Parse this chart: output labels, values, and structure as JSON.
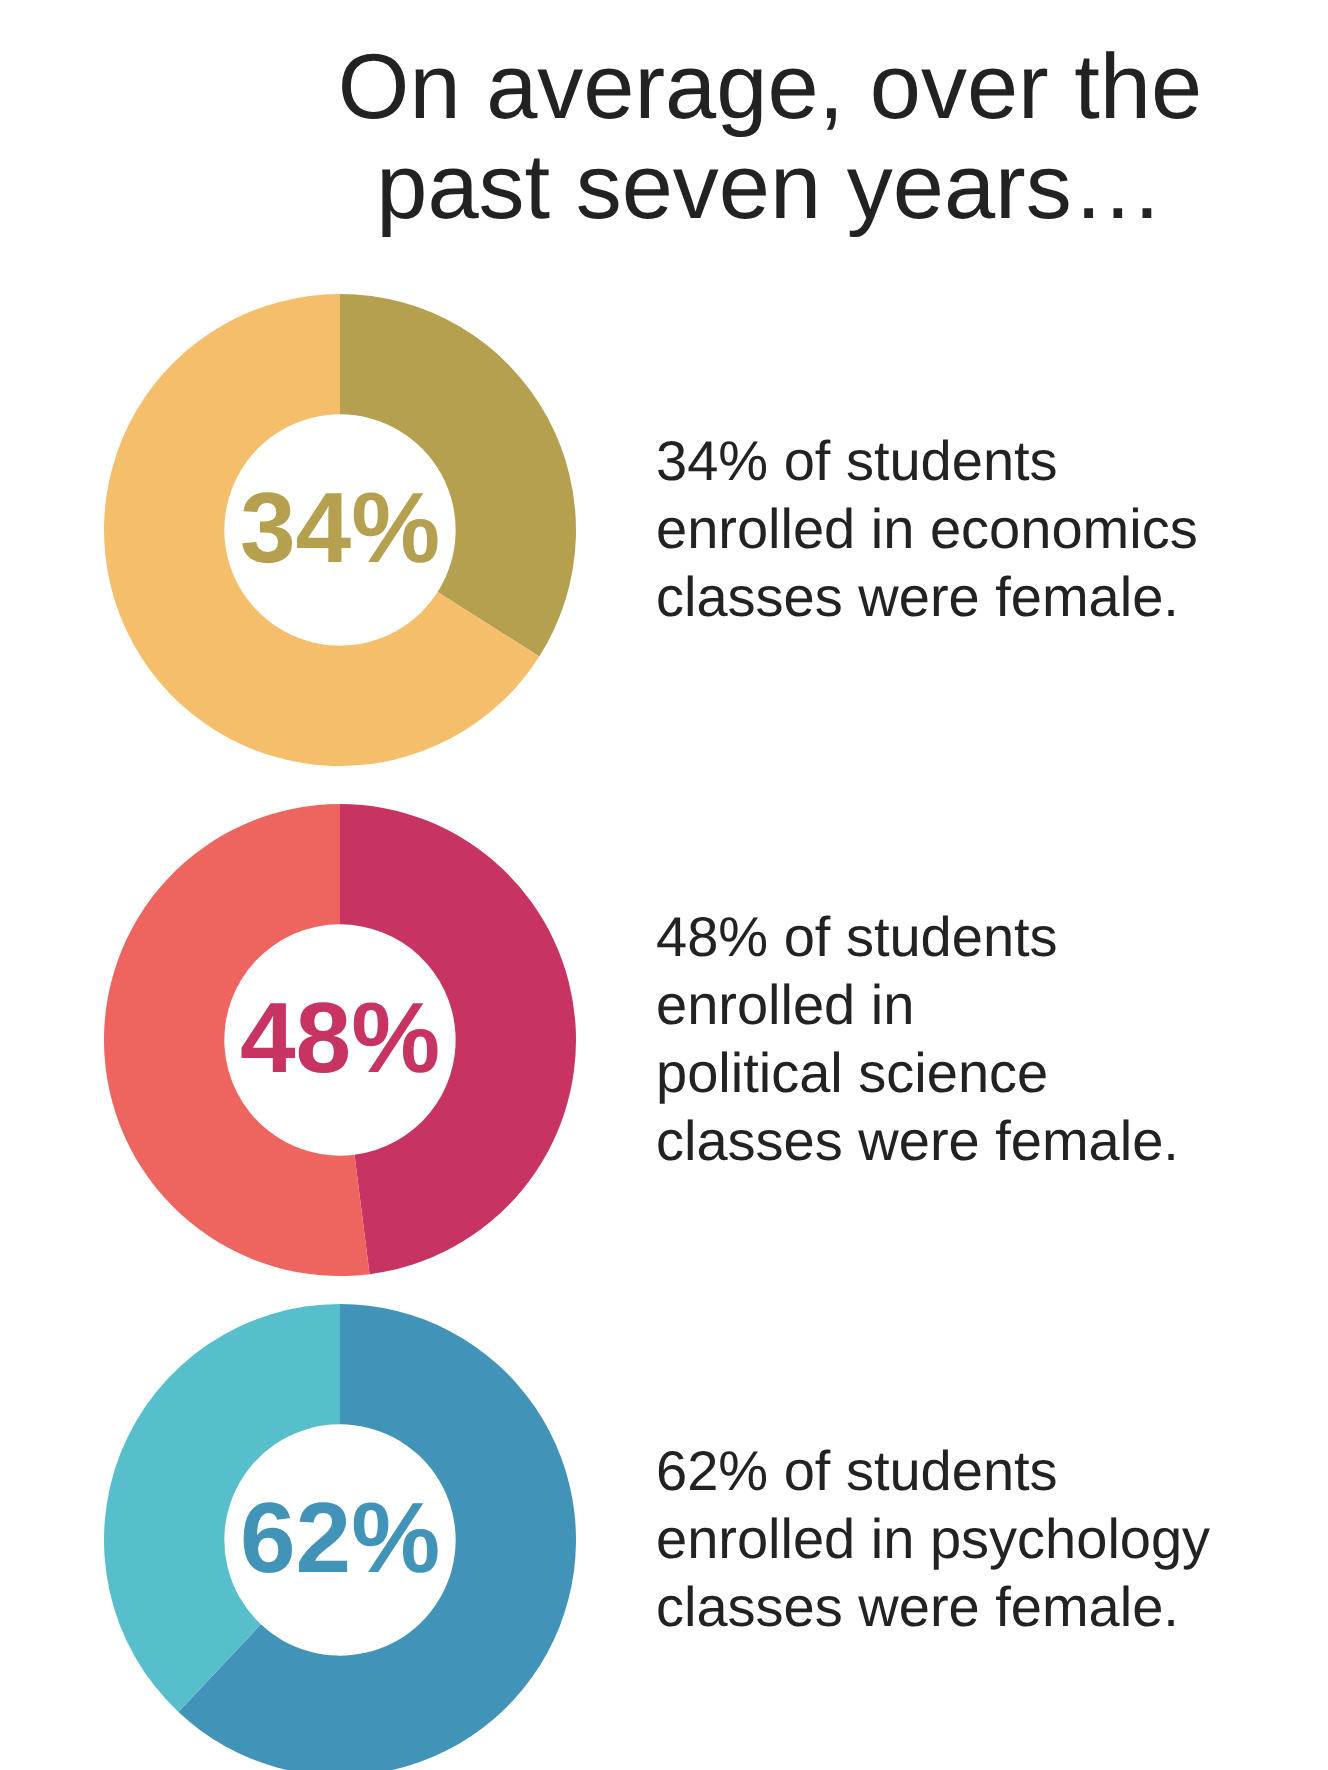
{
  "chart_data": [
    {
      "type": "donut",
      "title": "On average, over the past seven years…",
      "categories": [
        null,
        null
      ],
      "values": [
        34,
        66
      ],
      "colors": [
        "#b5a04f",
        "#f4be6b"
      ],
      "value_labels": [
        "34%",
        null
      ],
      "legend": false,
      "annotations": [
        "34% of students",
        "enrolled in economics",
        "classes were female."
      ]
    },
    {
      "type": "donut",
      "categories": [
        null,
        null
      ],
      "values": [
        48,
        52
      ],
      "colors": [
        "#c83462",
        "#ee6560"
      ],
      "value_labels": [
        "48%",
        null
      ],
      "legend": false,
      "annotations": [
        "48% of students",
        "enrolled in",
        "political science",
        "classes were female."
      ]
    },
    {
      "type": "donut",
      "categories": [
        null,
        null
      ],
      "values": [
        62,
        38
      ],
      "colors": [
        "#4293b8",
        "#57bfcb"
      ],
      "value_labels": [
        "62%",
        null
      ],
      "legend": false,
      "annotations": [
        "62% of students",
        "enrolled in psychology",
        "classes were female."
      ]
    }
  ]
}
